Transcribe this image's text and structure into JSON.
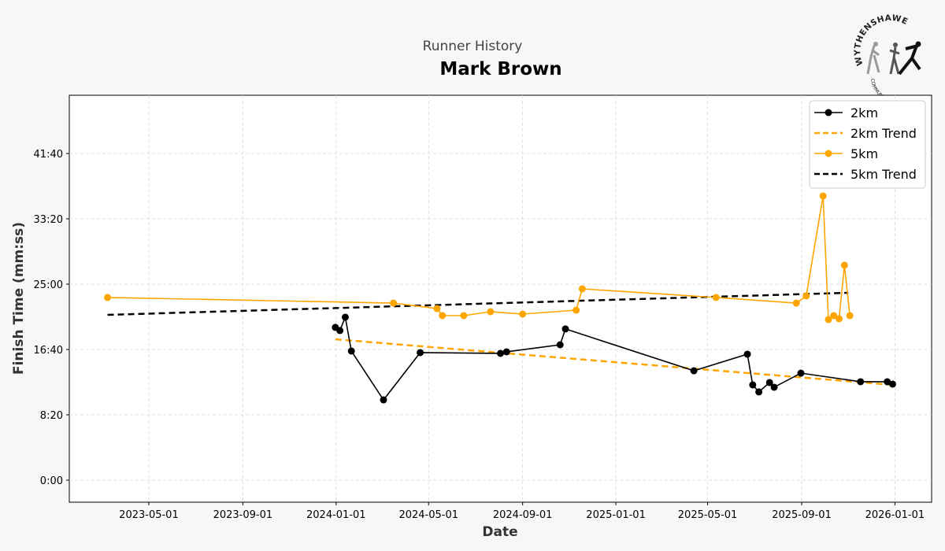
{
  "header": {
    "subtitle": "Runner History",
    "title": "Mark Brown"
  },
  "logo": {
    "top_text": "WYTHENSHAWE",
    "bottom_text": "COMMUNITY RUN"
  },
  "chart_data": {
    "type": "line",
    "title": "Mark Brown",
    "subtitle": "Runner History",
    "xlabel": "Date",
    "ylabel": "Finish Time (mm:ss)",
    "xlim": [
      "2023-01-17",
      "2026-02-18"
    ],
    "ylim_seconds": [
      -169,
      2946
    ],
    "grid": true,
    "legend_position": "top-right",
    "x_ticks": [
      "2023-05-01",
      "2023-09-01",
      "2024-01-01",
      "2024-05-01",
      "2024-09-01",
      "2025-01-01",
      "2025-05-01",
      "2025-09-01",
      "2026-01-01"
    ],
    "y_ticks": [
      {
        "label": "0:00",
        "seconds": 0
      },
      {
        "label": "8:20",
        "seconds": 500
      },
      {
        "label": "16:40",
        "seconds": 1000
      },
      {
        "label": "25:00",
        "seconds": 1500
      },
      {
        "label": "33:20",
        "seconds": 2000
      },
      {
        "label": "41:40",
        "seconds": 2500
      }
    ],
    "series": [
      {
        "name": "2km",
        "color": "#000000",
        "style": "solid-markers",
        "points": [
          [
            "2023-12-31",
            "19:29"
          ],
          [
            "2024-01-06",
            "19:05"
          ],
          [
            "2024-01-13",
            "20:47"
          ],
          [
            "2024-01-21",
            "16:28"
          ],
          [
            "2024-03-03",
            "10:14"
          ],
          [
            "2024-04-20",
            "16:16"
          ],
          [
            "2024-08-03",
            "16:10"
          ],
          [
            "2024-08-11",
            "16:22"
          ],
          [
            "2024-10-20",
            "17:16"
          ],
          [
            "2024-10-27",
            "19:17"
          ],
          [
            "2025-04-13",
            "13:57"
          ],
          [
            "2025-06-22",
            "16:04"
          ],
          [
            "2025-06-29",
            "12:09"
          ],
          [
            "2025-07-07",
            "11:15"
          ],
          [
            "2025-07-21",
            "12:27"
          ],
          [
            "2025-07-27",
            "11:51"
          ],
          [
            "2025-08-31",
            "13:39"
          ],
          [
            "2025-11-17",
            "12:33"
          ],
          [
            "2025-12-22",
            "12:33"
          ],
          [
            "2025-12-29",
            "12:15"
          ]
        ]
      },
      {
        "name": "2km Trend",
        "color": "#ffa500",
        "style": "dashed",
        "points": [
          [
            "2023-12-31",
            "17:58"
          ],
          [
            "2025-12-29",
            "12:09"
          ]
        ]
      },
      {
        "name": "5km",
        "color": "#ffa500",
        "style": "solid-markers",
        "points": [
          [
            "2023-03-08",
            "23:18"
          ],
          [
            "2024-03-16",
            "22:35"
          ],
          [
            "2024-05-12",
            "21:53"
          ],
          [
            "2024-05-19",
            "20:59"
          ],
          [
            "2024-06-16",
            "20:59"
          ],
          [
            "2024-07-21",
            "21:29"
          ],
          [
            "2024-09-01",
            "21:11"
          ],
          [
            "2024-11-10",
            "21:41"
          ],
          [
            "2024-11-18",
            "24:24"
          ],
          [
            "2025-05-12",
            "23:18"
          ],
          [
            "2025-08-25",
            "22:35"
          ],
          [
            "2025-09-07",
            "23:30"
          ],
          [
            "2025-09-29",
            "36:15"
          ],
          [
            "2025-10-06",
            "20:29"
          ],
          [
            "2025-10-13",
            "20:59"
          ],
          [
            "2025-10-20",
            "20:35"
          ],
          [
            "2025-10-27",
            "27:25"
          ],
          [
            "2025-11-03",
            "20:59"
          ]
        ]
      },
      {
        "name": "5km Trend",
        "color": "#000000",
        "style": "dashed",
        "points": [
          [
            "2023-03-08",
            "21:05"
          ],
          [
            "2025-11-01",
            "23:54"
          ]
        ]
      }
    ]
  }
}
